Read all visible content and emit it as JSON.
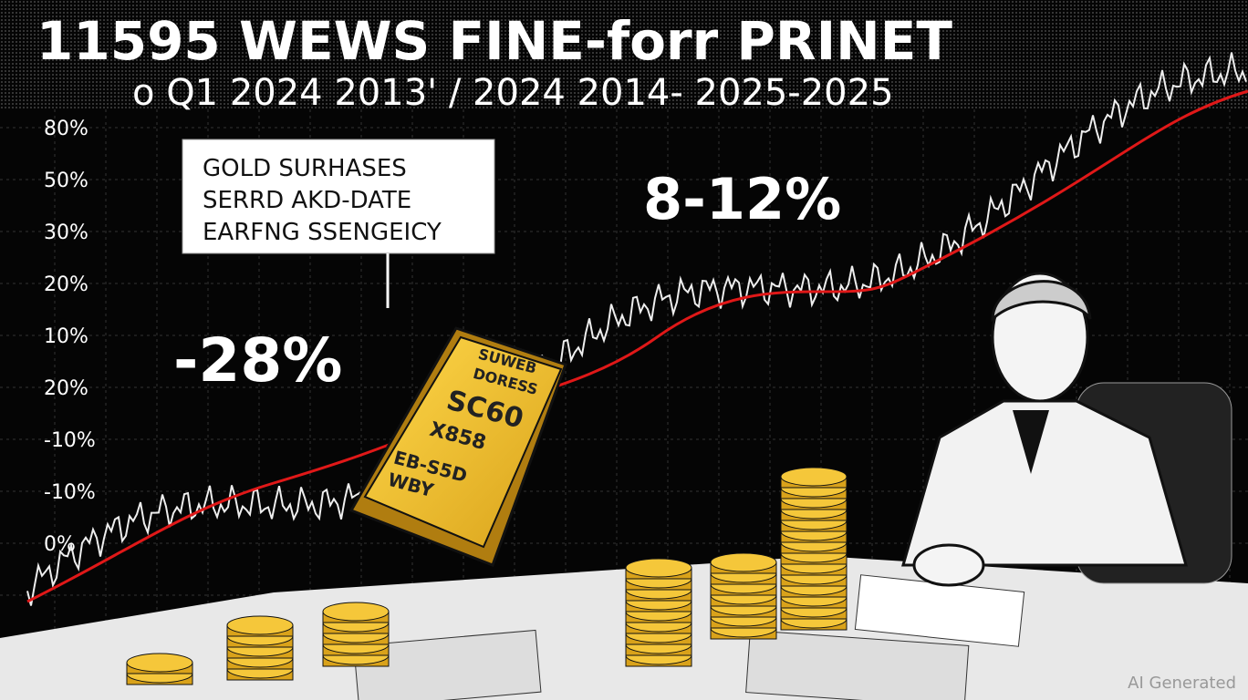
{
  "header": {
    "title": "11595 WEWS FINE-forr PRINET",
    "subtitle": "o Q1 2024 2013' / 2024 2014- 2025-2025"
  },
  "side_labels": [
    "80%",
    "50%",
    "30%",
    "20%",
    "10%",
    "20%",
    "-10%",
    "-10%",
    "0%"
  ],
  "callout": {
    "lines": [
      "GOLD SURHASES",
      "SERRD AKD-DATE",
      "EARFNG SSENGEICY"
    ]
  },
  "big_numbers": [
    "-28%",
    "8-12%"
  ],
  "gold_bar": {
    "lines": [
      "SUWEB",
      "DORESS",
      "SC60",
      "X858",
      "EB-S5D",
      "WBY"
    ]
  },
  "watermark": "AI Generated"
}
